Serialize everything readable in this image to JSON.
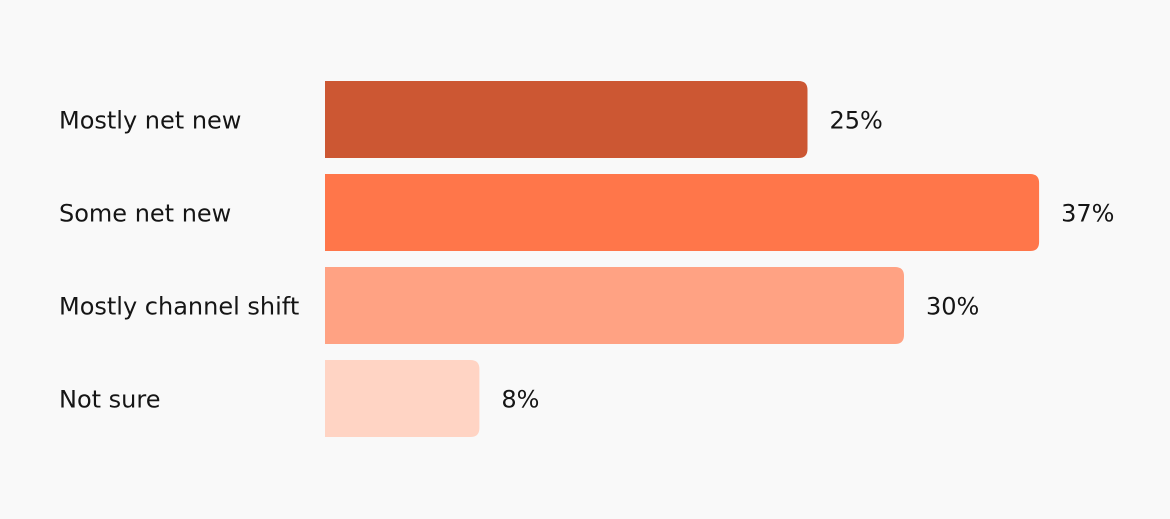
{
  "chart_data": {
    "type": "hbar",
    "categories": [
      "Mostly net new",
      "Some net new",
      "Mostly channel shift",
      "Not sure"
    ],
    "values": [
      25,
      37,
      30,
      8
    ],
    "value_labels": [
      "25%",
      "37%",
      "30%",
      "8%"
    ],
    "colors": [
      "#cc5733",
      "#ff764a",
      "#ffa283",
      "#ffd4c4"
    ]
  }
}
